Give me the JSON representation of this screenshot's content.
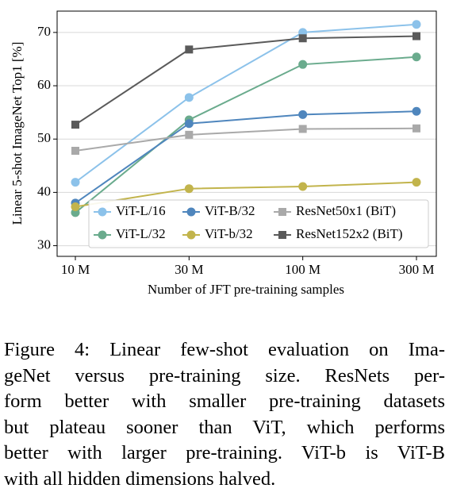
{
  "chart_data": {
    "type": "line",
    "x_label": "Number of JFT pre-training samples",
    "y_label": "Linear 5-shot ImageNet Top1 [%]",
    "categories": [
      "10 M",
      "30 M",
      "100 M",
      "300 M"
    ],
    "series": [
      {
        "name": "ViT-L/16",
        "color": "#8cc2ea",
        "marker": "circle",
        "values": [
          41.9,
          57.8,
          70.0,
          71.5
        ]
      },
      {
        "name": "ViT-L/32",
        "color": "#6aab8d",
        "marker": "circle",
        "values": [
          36.2,
          53.6,
          64.0,
          65.4
        ]
      },
      {
        "name": "ViT-B/32",
        "color": "#4f86bd",
        "marker": "circle",
        "values": [
          38.0,
          52.9,
          54.6,
          55.2
        ]
      },
      {
        "name": "ViT-b/32",
        "color": "#c2b44c",
        "marker": "circle",
        "values": [
          37.3,
          40.7,
          41.1,
          41.9
        ]
      },
      {
        "name": "ResNet50x1 (BiT)",
        "color": "#a9a9a9",
        "marker": "square",
        "values": [
          47.8,
          50.8,
          51.9,
          52.0
        ]
      },
      {
        "name": "ResNet152x2 (BiT)",
        "color": "#5a5a5a",
        "marker": "square",
        "values": [
          52.7,
          66.8,
          68.9,
          69.3
        ]
      }
    ],
    "ylim": [
      28,
      74
    ],
    "yticks": [
      30,
      40,
      50,
      60,
      70
    ],
    "grid": true,
    "legend": "lower right",
    "legend_rows": 2
  },
  "caption": {
    "lines": [
      "Figure 4:  Linear few-shot evaluation on Ima-",
      "geNet versus pre-training size.  ResNets per-",
      "form better with smaller pre-training datasets",
      "but plateau sooner than ViT, which performs",
      "better with larger pre-training. ViT-b is ViT-B",
      "with all hidden dimensions halved."
    ]
  }
}
